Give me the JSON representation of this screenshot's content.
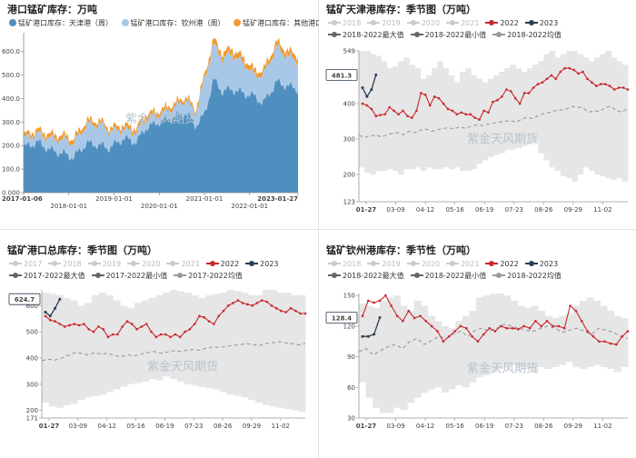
{
  "watermark": "紫金天风期货",
  "charts": [
    {
      "title": "港口锰矿库存：万吨",
      "chart_data": {
        "type": "area",
        "stacked": true,
        "series": [
          {
            "name": "锰矿港口库存：天津港（周）",
            "color": "#4f8fc0"
          },
          {
            "name": "锰矿港口库存：钦州港（周）",
            "color": "#a9c8e8"
          },
          {
            "name": "锰矿港口库存：其他港口（周）",
            "color": "#f39a2f"
          }
        ],
        "x_ticks": [
          "2017-01-06",
          "2018-01-01",
          "2019-01-01",
          "2020-01-01",
          "2021-01-01",
          "2022-01-01",
          "2023-01-27"
        ],
        "y_ticks": [
          "0.000",
          "100.0",
          "200.0",
          "300.0",
          "400.0",
          "500.0",
          "600.0"
        ],
        "ylim": [
          0,
          680
        ],
        "keypoints": {
          "t": [
            2017.0,
            2017.3,
            2017.6,
            2017.9,
            2018.1,
            2018.4,
            2018.7,
            2018.9,
            2019.2,
            2019.5,
            2019.7,
            2020.0,
            2020.3,
            2020.6,
            2020.8,
            2021.0,
            2021.2,
            2021.4,
            2021.6,
            2021.9,
            2022.1,
            2022.3,
            2022.6,
            2022.8,
            2023.07
          ],
          "tianjin": [
            190,
            215,
            180,
            165,
            150,
            210,
            200,
            190,
            230,
            215,
            275,
            300,
            320,
            340,
            285,
            330,
            480,
            430,
            440,
            420,
            410,
            380,
            470,
            455,
            440
          ],
          "qinzhou": [
            40,
            35,
            50,
            60,
            60,
            80,
            90,
            70,
            40,
            40,
            40,
            30,
            40,
            55,
            50,
            150,
            150,
            140,
            150,
            125,
            90,
            120,
            150,
            130,
            120
          ],
          "other": [
            15,
            15,
            15,
            15,
            15,
            15,
            15,
            15,
            15,
            15,
            15,
            15,
            15,
            15,
            15,
            15,
            20,
            20,
            20,
            20,
            20,
            20,
            20,
            20,
            20
          ]
        }
      }
    },
    {
      "title": "锰矿天津港库存：季节图（万吨）",
      "chart_data": {
        "type": "line",
        "legend": [
          {
            "name": "2018",
            "active": false
          },
          {
            "name": "2019",
            "active": false
          },
          {
            "name": "2020",
            "active": false
          },
          {
            "name": "2021",
            "active": false
          },
          {
            "name": "2022",
            "active": true,
            "color": "#c9282d"
          },
          {
            "name": "2023",
            "active": true,
            "color": "#2a3f55"
          },
          {
            "name": "2018-2022最大值",
            "active": true,
            "color": "#666"
          },
          {
            "name": "2018-2022最小值",
            "active": true,
            "color": "#666"
          },
          {
            "name": "2018-2022均值",
            "active": true,
            "color": "#999"
          }
        ],
        "x_ticks": [
          "01-27",
          "03-09",
          "04-12",
          "05-16",
          "06-19",
          "07-23",
          "08-26",
          "09-29",
          "11-02"
        ],
        "y_ticks": [
          "123",
          "200",
          "300",
          "400",
          "481.3",
          "549"
        ],
        "ylim": [
          123,
          549
        ],
        "last_value_label": "481.3",
        "series_2022": [
          400,
          395,
          385,
          365,
          368,
          370,
          390,
          380,
          370,
          380,
          365,
          360,
          380,
          430,
          425,
          395,
          420,
          415,
          400,
          385,
          380,
          370,
          375,
          370,
          370,
          360,
          355,
          380,
          375,
          405,
          410,
          420,
          440,
          435,
          415,
          400,
          430,
          430,
          445,
          455,
          460,
          470,
          480,
          470,
          490,
          500,
          500,
          495,
          485,
          490,
          470,
          460,
          450,
          455,
          455,
          450,
          440,
          445,
          445,
          440
        ],
        "series_2023": [
          445,
          420,
          440,
          481.3
        ],
        "mean": [
          310,
          305,
          308,
          312,
          306,
          312,
          316,
          318,
          312,
          322,
          318,
          325,
          328,
          322,
          326,
          330,
          332,
          328,
          335,
          330,
          336,
          340,
          338,
          342,
          345,
          348,
          350,
          352,
          348,
          355,
          362,
          358,
          366,
          372,
          375,
          380,
          382,
          384,
          392,
          390,
          388,
          376,
          380,
          378,
          390,
          392,
          380,
          376,
          388
        ],
        "max": [
          549,
          549,
          540,
          535,
          520,
          500,
          505,
          520,
          530,
          510,
          500,
          470,
          480,
          500,
          520,
          500,
          480,
          460,
          490,
          500,
          480,
          470,
          460,
          470,
          480,
          490,
          500,
          510,
          500,
          490,
          500,
          510,
          520,
          540,
          549,
          530,
          540,
          549,
          549,
          540,
          530,
          520,
          530,
          540,
          549,
          530,
          520,
          510
        ],
        "min": [
          220,
          205,
          200,
          210,
          210,
          215,
          210,
          200,
          215,
          215,
          220,
          210,
          220,
          215,
          215,
          220,
          215,
          220,
          210,
          210,
          215,
          230,
          240,
          250,
          255,
          260,
          270,
          270,
          275,
          280,
          285,
          290,
          260,
          240,
          220,
          210,
          195,
          190,
          180,
          200,
          220,
          210,
          200,
          195,
          190,
          185,
          190,
          180
        ]
      }
    },
    {
      "title": "锰矿港口总库存：季节图（万吨）",
      "chart_data": {
        "type": "line",
        "legend": [
          {
            "name": "2017",
            "active": false
          },
          {
            "name": "2018",
            "active": false
          },
          {
            "name": "2019",
            "active": false
          },
          {
            "name": "2020",
            "active": false
          },
          {
            "name": "2021",
            "active": false
          },
          {
            "name": "2022",
            "active": true,
            "color": "#c9282d"
          },
          {
            "name": "2023",
            "active": true,
            "color": "#2a3f55"
          },
          {
            "name": "2017-2022最大值",
            "active": true,
            "color": "#666"
          },
          {
            "name": "2017-2022最小值",
            "active": true,
            "color": "#666"
          },
          {
            "name": "2017-2022均值",
            "active": true,
            "color": "#999"
          }
        ],
        "x_ticks": [
          "01-27",
          "03-09",
          "04-12",
          "05-16",
          "06-19",
          "07-23",
          "08-26",
          "09-29",
          "11-02"
        ],
        "y_ticks": [
          "171",
          "200",
          "300",
          "400",
          "500",
          "600",
          "624.7"
        ],
        "ylim": [
          171,
          660
        ],
        "last_value_label": "624.7",
        "series_2022": [
          560,
          545,
          540,
          530,
          520,
          525,
          530,
          525,
          530,
          510,
          500,
          520,
          510,
          480,
          490,
          490,
          520,
          540,
          530,
          510,
          520,
          530,
          500,
          480,
          490,
          490,
          480,
          490,
          480,
          500,
          510,
          530,
          560,
          555,
          540,
          530,
          560,
          580,
          600,
          610,
          620,
          610,
          605,
          600,
          610,
          620,
          615,
          600,
          590,
          580,
          575,
          590,
          580,
          570,
          570
        ],
        "series_2023": [
          575,
          560,
          590,
          624.7
        ],
        "mean": [
          390,
          395,
          392,
          400,
          410,
          420,
          418,
          412,
          420,
          415,
          418,
          410,
          405,
          412,
          408,
          415,
          420,
          425,
          418,
          422,
          428,
          425,
          430,
          432,
          430,
          438,
          442,
          440,
          445,
          448,
          450,
          455,
          452,
          448,
          455,
          458,
          462,
          458,
          455,
          450,
          455
        ],
        "max": [
          650,
          645,
          640,
          630,
          620,
          600,
          610,
          640,
          650,
          640,
          620,
          600,
          590,
          610,
          620,
          630,
          640,
          650,
          660,
          655,
          650,
          640,
          630,
          640,
          645,
          650,
          660,
          655,
          650,
          640,
          640,
          660,
          660,
          650,
          650,
          640,
          640
        ],
        "min": [
          230,
          215,
          210,
          220,
          225,
          240,
          250,
          255,
          260,
          270,
          280,
          290,
          300,
          305,
          310,
          320,
          315,
          330,
          320,
          310,
          300,
          295,
          290,
          285,
          280,
          270,
          260,
          255,
          250,
          240,
          230,
          220,
          215,
          210,
          205,
          200,
          195,
          190
        ]
      }
    },
    {
      "title": "锰矿钦州港库存：季节性（万吨）",
      "chart_data": {
        "type": "line",
        "legend": [
          {
            "name": "2018",
            "active": false
          },
          {
            "name": "2019",
            "active": false
          },
          {
            "name": "2020",
            "active": false
          },
          {
            "name": "2021",
            "active": false
          },
          {
            "name": "2022",
            "active": true,
            "color": "#c9282d"
          },
          {
            "name": "2023",
            "active": true,
            "color": "#2a3f55"
          },
          {
            "name": "2018-2022最大值",
            "active": true,
            "color": "#666"
          },
          {
            "name": "2018-2022最小值",
            "active": true,
            "color": "#666"
          },
          {
            "name": "2018-2022均值",
            "active": true,
            "color": "#999"
          }
        ],
        "x_ticks": [
          "01-27",
          "03-09",
          "04-12",
          "05-16",
          "06-19",
          "07-23",
          "08-26",
          "09-29",
          "11-02"
        ],
        "y_ticks": [
          "30",
          "60",
          "90",
          "120",
          "128.4",
          "150"
        ],
        "ylim": [
          30,
          152
        ],
        "last_value_label": "128.4",
        "series_2022": [
          130,
          145,
          143,
          145,
          150,
          140,
          130,
          125,
          135,
          128,
          130,
          125,
          120,
          115,
          105,
          110,
          115,
          120,
          118,
          110,
          105,
          112,
          118,
          115,
          120,
          118,
          118,
          117,
          120,
          118,
          125,
          120,
          125,
          120,
          120,
          118,
          140,
          135,
          125,
          115,
          110,
          105,
          105,
          103,
          102,
          110,
          115
        ],
        "series_2023": [
          110,
          110,
          112,
          128.4
        ],
        "mean": [
          95,
          98,
          92,
          96,
          100,
          102,
          98,
          105,
          108,
          102,
          106,
          110,
          108,
          112,
          115,
          110,
          116,
          118,
          115,
          118,
          122,
          120,
          118,
          116,
          115,
          118,
          120,
          118,
          114,
          116,
          118,
          115,
          112,
          118,
          116,
          114,
          110,
          108
        ],
        "max": [
          142,
          140,
          138,
          145,
          148,
          150,
          140,
          135,
          145,
          140,
          130,
          125,
          120,
          118,
          125,
          130,
          135,
          148,
          150,
          152,
          152,
          150,
          145,
          140,
          138,
          140,
          135,
          130,
          128,
          130,
          132,
          140,
          145,
          148,
          145,
          140,
          135,
          130,
          128,
          132
        ],
        "min": [
          65,
          50,
          40,
          35,
          35,
          40,
          38,
          45,
          50,
          55,
          58,
          60,
          55,
          58,
          62,
          60,
          65,
          70,
          72,
          75,
          78,
          80,
          82,
          80,
          78,
          75,
          80,
          78,
          80,
          82,
          85,
          80,
          78,
          80,
          82,
          80,
          78,
          75,
          80
        ]
      }
    }
  ]
}
